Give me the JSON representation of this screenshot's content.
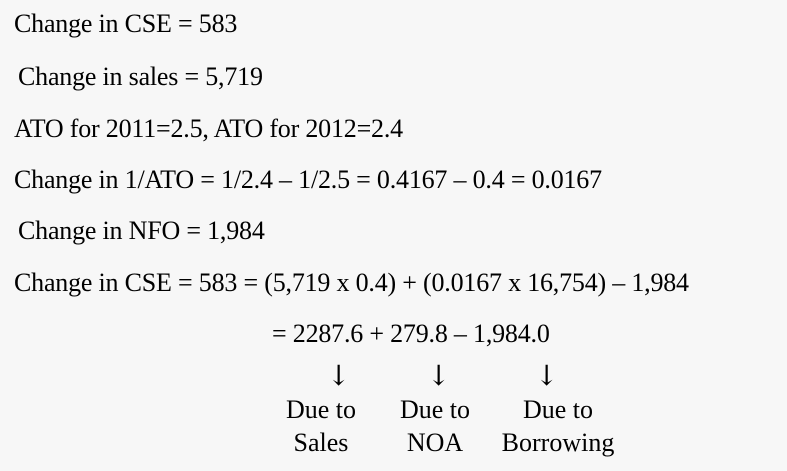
{
  "lines": [
    "Change in CSE = 583",
    "Change in sales = 5,719",
    "ATO for 2011=2.5, ATO for 2012=2.4",
    "Change in 1/ATO = 1/2.4 – 1/2.5 = 0.4167 – 0.4 = 0.0167",
    "Change in NFO = 1,984",
    "Change in CSE = 583 = (5,719 x 0.4) + (0.0167 x 16,754) – 1,984",
    "= 2287.6 + 279.8 – 1,984.0"
  ],
  "arrow_glyph": "↓",
  "labels": [
    {
      "line1": "Due to",
      "line2": "Sales"
    },
    {
      "line1": "Due to",
      "line2": "NOA"
    },
    {
      "line1": "Due to",
      "line2": "Borrowing"
    }
  ]
}
